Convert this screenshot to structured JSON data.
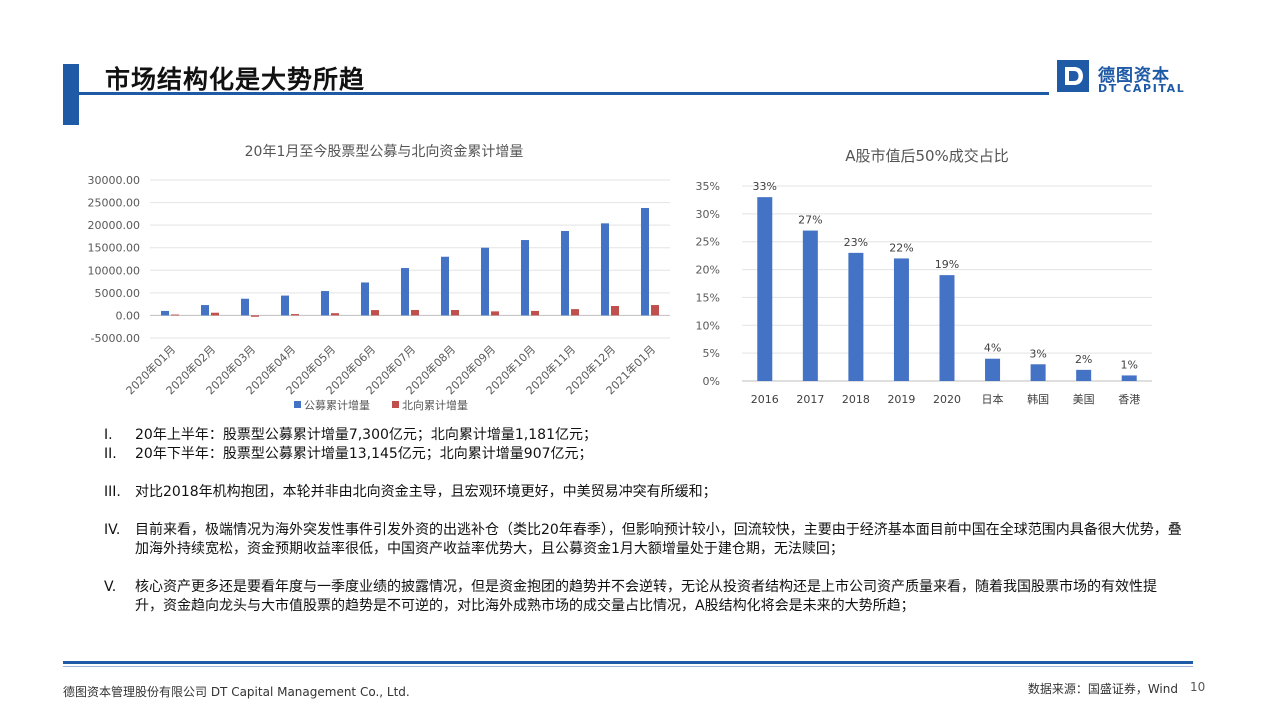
{
  "header": {
    "title": "市场结构化是大势所趋",
    "logo_cn": "德图资本",
    "logo_en": "DT CAPITAL",
    "brand_color": "#1f5aa6"
  },
  "chart_data": [
    {
      "type": "bar",
      "title": "20年1月至今股票型公募与北向资金累计增量",
      "categories": [
        "2020年01月",
        "2020年02月",
        "2020年03月",
        "2020年04月",
        "2020年05月",
        "2020年06月",
        "2020年07月",
        "2020年08月",
        "2020年09月",
        "2020年10月",
        "2020年11月",
        "2020年12月",
        "2021年01月"
      ],
      "y_ticks": [
        "30000.00",
        "25000.00",
        "20000.00",
        "15000.00",
        "10000.00",
        "5000.00",
        "0.00",
        "-5000.00"
      ],
      "ylim": [
        -5000,
        30000
      ],
      "legend_position": "bottom",
      "series": [
        {
          "name": "公募累计增量",
          "color": "#4472c4",
          "values": [
            1000,
            2300,
            3700,
            4400,
            5400,
            7300,
            10500,
            13000,
            15000,
            16700,
            18700,
            20400,
            23800
          ]
        },
        {
          "name": "北向累计增量",
          "color": "#c0504d",
          "values": [
            200,
            600,
            -300,
            300,
            500,
            1181,
            1200,
            1200,
            900,
            1000,
            1400,
            2088,
            2300
          ]
        }
      ]
    },
    {
      "type": "bar",
      "title": "A股市值后50%成交占比",
      "categories": [
        "2016",
        "2017",
        "2018",
        "2019",
        "2020",
        "日本",
        "韩国",
        "美国",
        "香港"
      ],
      "values": [
        33,
        27,
        23,
        22,
        19,
        4,
        3,
        2,
        1
      ],
      "data_labels": [
        "33%",
        "27%",
        "23%",
        "22%",
        "19%",
        "4%",
        "3%",
        "2%",
        "1%"
      ],
      "y_ticks": [
        "35%",
        "30%",
        "25%",
        "20%",
        "15%",
        "10%",
        "5%",
        "0%"
      ],
      "ylim": [
        0,
        35
      ],
      "color": "#4472c4"
    }
  ],
  "bullets": [
    {
      "num": "I.",
      "text": "20年上半年：股票型公募累计增量7,300亿元；北向累计增量1,181亿元；"
    },
    {
      "num": "II.",
      "text": "20年下半年：股票型公募累计增量13,145亿元；北向累计增量907亿元；"
    },
    {
      "num": "III.",
      "text": "对比2018年机构抱团，本轮并非由北向资金主导，且宏观环境更好，中美贸易冲突有所缓和；"
    },
    {
      "num": "IV.",
      "text": "目前来看，极端情况为海外突发性事件引发外资的出逃补仓（类比20年春季），但影响预计较小，回流较快，主要由于经济基本面目前中国在全球范围内具备很大优势，叠加海外持续宽松，资金预期收益率很低，中国资产收益率优势大，且公募资金1月大额增量处于建仓期，无法赎回；"
    },
    {
      "num": "V.",
      "text": "核心资产更多还是要看年度与一季度业绩的披露情况，但是资金抱团的趋势并不会逆转，无论从投资者结构还是上市公司资产质量来看，随着我国股票市场的有效性提升，资金趋向龙头与大市值股票的趋势是不可逆的，对比海外成熟市场的成交量占比情况，A股结构化将会是未来的大势所趋；"
    }
  ],
  "footer": {
    "company": "德图资本管理股份有限公司  DT Capital  Management  Co., Ltd.",
    "source": "数据来源：国盛证券，Wind",
    "page": "10"
  }
}
